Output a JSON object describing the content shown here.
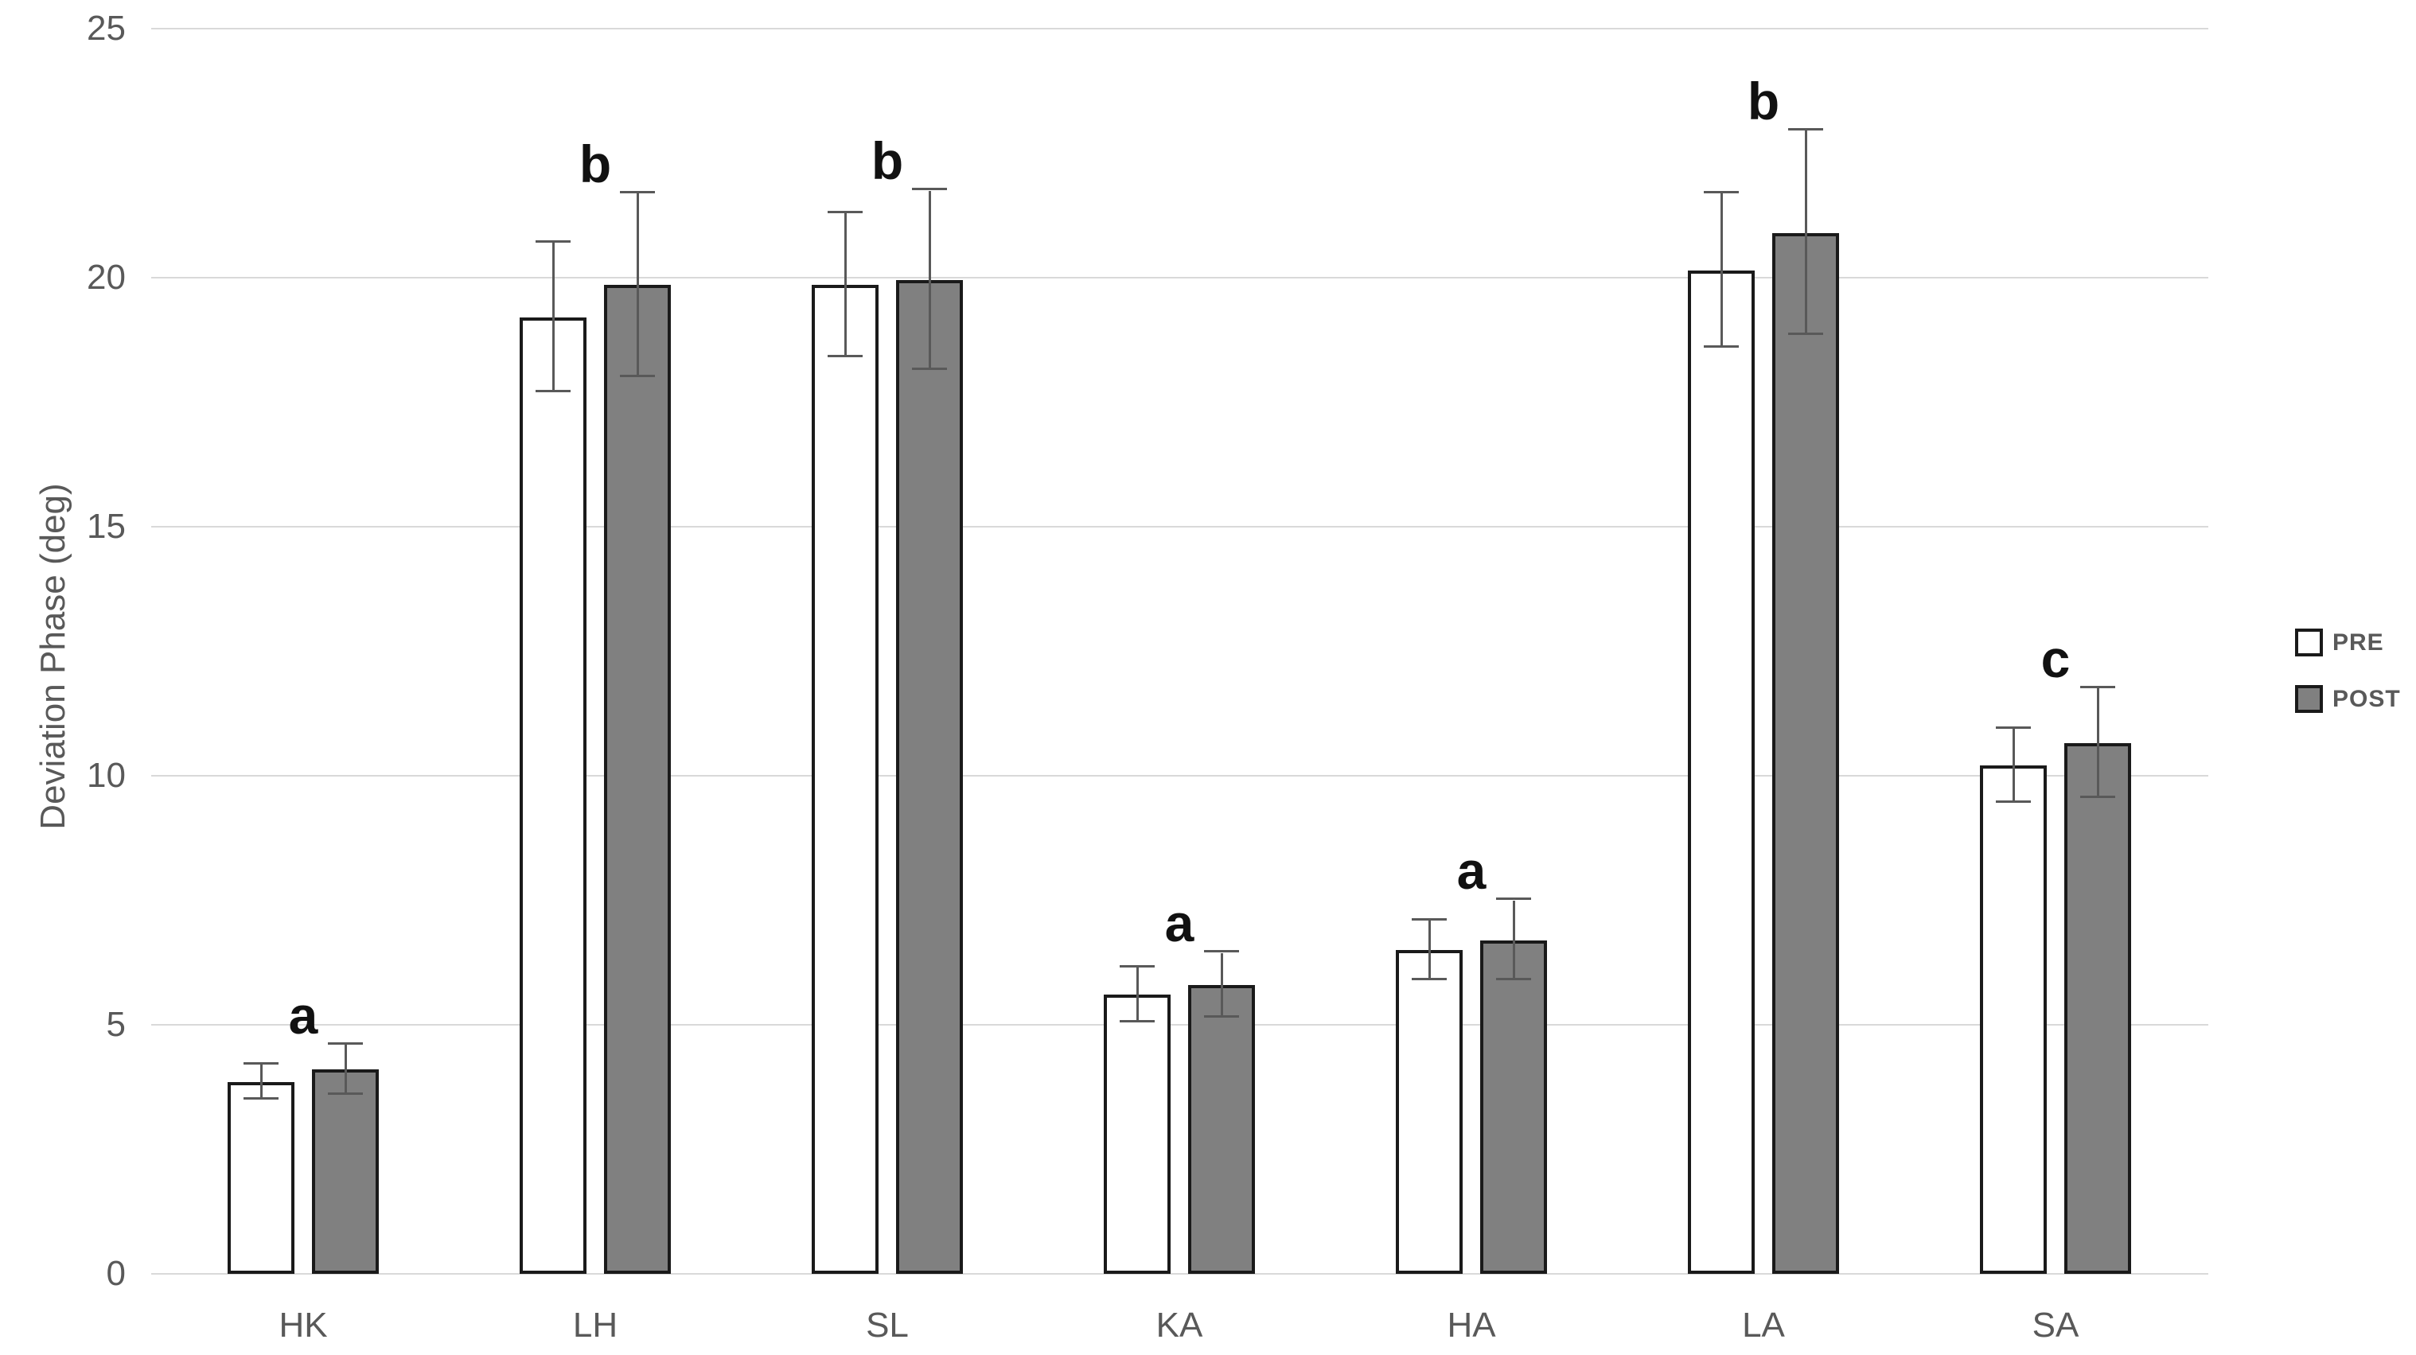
{
  "chart_data": {
    "type": "bar",
    "title": "",
    "xlabel": "",
    "ylabel": "Deviation Phase (deg)",
    "ylim": [
      0,
      25
    ],
    "yticks": [
      0,
      5,
      10,
      15,
      20,
      25
    ],
    "grid": "horizontal",
    "legend_position": "right",
    "categories": [
      "HK",
      "LH",
      "SL",
      "KA",
      "HA",
      "LA",
      "SA"
    ],
    "series": [
      {
        "name": "PRE",
        "fill": "#FFFFFF",
        "values": [
          3.85,
          19.2,
          19.85,
          5.6,
          6.5,
          20.15,
          10.2
        ],
        "errors": [
          0.35,
          1.5,
          1.45,
          0.55,
          0.6,
          1.55,
          0.75
        ]
      },
      {
        "name": "POST",
        "fill": "#808080",
        "values": [
          4.1,
          19.85,
          19.95,
          5.8,
          6.7,
          20.9,
          10.65
        ],
        "errors": [
          0.5,
          1.85,
          1.8,
          0.65,
          0.8,
          2.05,
          1.1
        ]
      }
    ],
    "significance_letters": [
      "a",
      "b",
      "b",
      "a",
      "a",
      "b",
      "c"
    ]
  },
  "legend": {
    "items": [
      {
        "label": "PRE",
        "swatch": "#FFFFFF"
      },
      {
        "label": "POST",
        "swatch": "#808080"
      }
    ]
  },
  "colors": {
    "gridline": "#D9D9D9",
    "axis_text": "#595959",
    "bar_border": "#1A1A1A",
    "error_bar": "#595959",
    "letter": "#111111"
  }
}
